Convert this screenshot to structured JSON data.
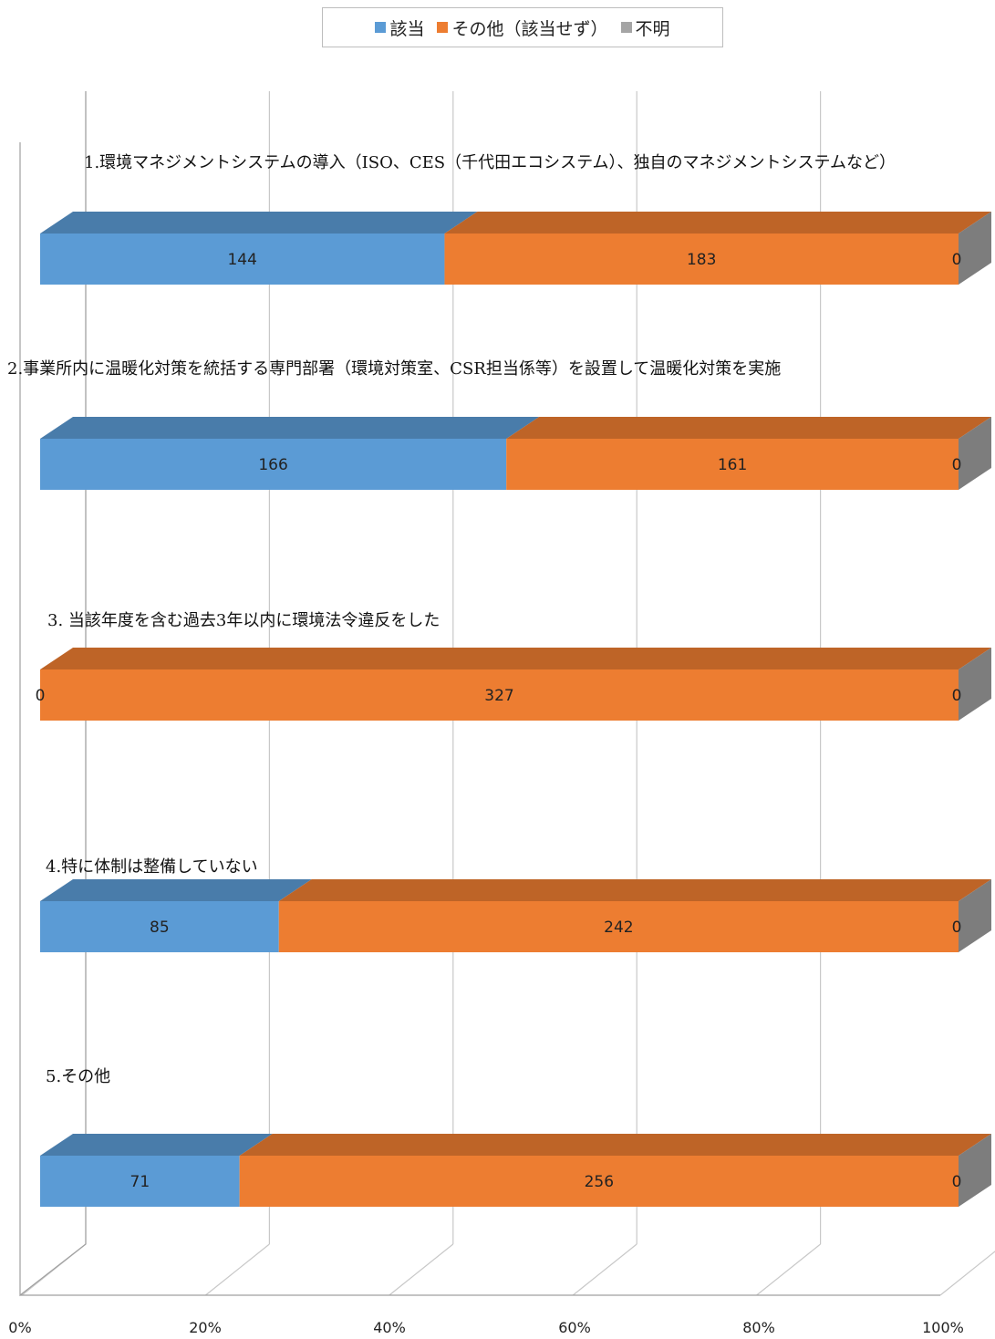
{
  "chart_data": {
    "type": "bar",
    "orientation": "horizontal",
    "stacked": "percent",
    "categories": [
      "1.環境マネジメントシステムの導入（ISO、CES（千代田エコシステム）、独自のマネジメントシステムなど）",
      "2.事業所内に温暖化対策を統括する専門部署（環境対策室、CSR担当係等）を設置して温暖化対策を実施",
      "3. 当該年度を含む過去3年以内に環境法令違反をした",
      "4.特に体制は整備していない",
      "5.その他"
    ],
    "series": [
      {
        "name": "該当",
        "color": "#5b9bd5",
        "values": [
          144,
          166,
          0,
          85,
          71
        ]
      },
      {
        "name": "その他（該当せず）",
        "color": "#ed7d31",
        "values": [
          183,
          161,
          327,
          242,
          256
        ]
      },
      {
        "name": "不明",
        "color": "#a5a5a5",
        "values": [
          0,
          0,
          0,
          0,
          0
        ]
      }
    ],
    "xlim": [
      0,
      100
    ],
    "xticks": [
      "0%",
      "20%",
      "40%",
      "60%",
      "80%",
      "100%"
    ],
    "grid": true,
    "legend": "top-center"
  }
}
